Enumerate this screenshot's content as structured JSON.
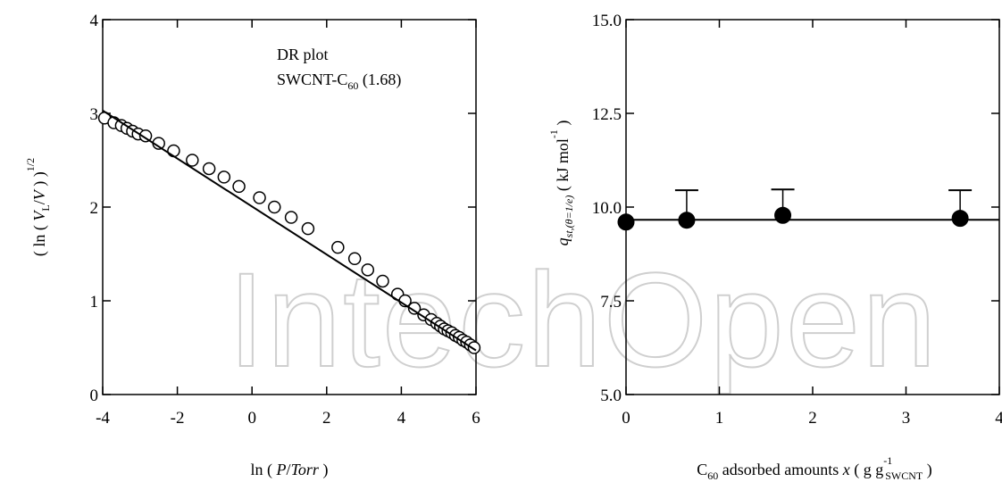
{
  "watermark": "IntechOpen",
  "chart_data": [
    {
      "type": "scatter",
      "xlim": [
        -4,
        6
      ],
      "ylim": [
        0,
        4
      ],
      "xticks": [
        -4,
        -2,
        0,
        2,
        4,
        6
      ],
      "yticks": [
        0,
        1,
        2,
        3,
        4
      ],
      "xtick_labels": [
        "-4",
        "-2",
        "0",
        "2",
        "4",
        "6"
      ],
      "ytick_labels": [
        "0",
        "1",
        "2",
        "3",
        "4"
      ],
      "xlabel_parts": [
        "ln ( ",
        "P",
        "/",
        "Torr",
        " )"
      ],
      "ylabel_parts": [
        "( ln ( ",
        "V",
        "L",
        "/",
        "V",
        " ) )",
        "1/2"
      ],
      "annotation_line1": "DR plot",
      "annotation_line2_parts": [
        "SWCNT-C",
        "60",
        " (1.68)"
      ],
      "grid": false,
      "series": [
        {
          "marker": "open-circle",
          "x": [
            -3.95,
            -3.7,
            -3.5,
            -3.35,
            -3.2,
            -3.05,
            -2.85,
            -2.5,
            -2.1,
            -1.6,
            -1.15,
            -0.75,
            -0.35,
            0.2,
            0.6,
            1.05,
            1.5,
            2.3,
            2.75,
            3.1,
            3.5,
            3.9,
            4.1,
            4.35,
            4.6,
            4.8,
            4.95,
            5.05,
            5.15,
            5.25,
            5.35,
            5.45,
            5.55,
            5.65,
            5.75,
            5.85,
            5.95
          ],
          "y": [
            2.95,
            2.9,
            2.87,
            2.84,
            2.81,
            2.78,
            2.76,
            2.68,
            2.6,
            2.5,
            2.41,
            2.32,
            2.22,
            2.1,
            2.0,
            1.89,
            1.77,
            1.57,
            1.45,
            1.33,
            1.21,
            1.07,
            1.0,
            0.92,
            0.85,
            0.8,
            0.76,
            0.73,
            0.7,
            0.68,
            0.66,
            0.63,
            0.61,
            0.58,
            0.56,
            0.53,
            0.5
          ]
        },
        {
          "type": "line",
          "x": [
            -4,
            6
          ],
          "y": [
            3.03,
            0.47
          ]
        }
      ]
    },
    {
      "type": "scatter",
      "xlim": [
        0,
        4
      ],
      "ylim": [
        5.0,
        15.0
      ],
      "xticks": [
        0,
        1,
        2,
        3,
        4
      ],
      "yticks": [
        5.0,
        7.5,
        10.0,
        12.5,
        15.0
      ],
      "xtick_labels": [
        "0",
        "1",
        "2",
        "3",
        "4"
      ],
      "ytick_labels": [
        "5.0",
        "7.5",
        "10.0",
        "12.5",
        "15.0"
      ],
      "xlabel_parts": [
        "C",
        "60",
        " adsorbed amounts ",
        "x",
        "  ( g g",
        "-1",
        "SWCNT",
        " )"
      ],
      "ylabel_parts": [
        "q",
        "st,(θ=1/e)",
        "   ( kJ mol",
        "-1",
        " )"
      ],
      "grid": false,
      "series": [
        {
          "marker": "filled-circle",
          "x": [
            0,
            0.65,
            1.68,
            3.58
          ],
          "y": [
            9.6,
            9.65,
            9.78,
            9.7
          ],
          "error_upper": [
            9.6,
            10.45,
            10.47,
            10.45
          ]
        },
        {
          "type": "line",
          "x": [
            0,
            4
          ],
          "y": [
            9.66,
            9.66
          ]
        }
      ]
    }
  ]
}
